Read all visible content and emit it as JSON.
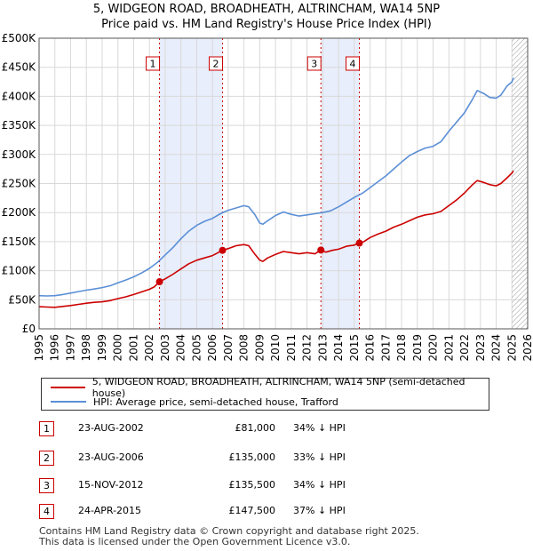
{
  "title_line1": "5, WIDGEON ROAD, BROADHEATH, ALTRINCHAM, WA14 5NP",
  "title_line2": "Price paid vs. HM Land Registry's House Price Index (HPI)",
  "chart_data": {
    "type": "line",
    "x_range": [
      1995,
      2026
    ],
    "ylim": [
      0,
      500000
    ],
    "y_ticks": [
      {
        "value": 0,
        "label": "£0"
      },
      {
        "value": 50000,
        "label": "£50K"
      },
      {
        "value": 100000,
        "label": "£100K"
      },
      {
        "value": 150000,
        "label": "£150K"
      },
      {
        "value": 200000,
        "label": "£200K"
      },
      {
        "value": 250000,
        "label": "£250K"
      },
      {
        "value": 300000,
        "label": "£300K"
      },
      {
        "value": 350000,
        "label": "£350K"
      },
      {
        "value": 400000,
        "label": "£400K"
      },
      {
        "value": 450000,
        "label": "£450K"
      },
      {
        "value": 500000,
        "label": "£500K"
      }
    ],
    "x_ticks": [
      "1995",
      "1996",
      "1997",
      "1998",
      "1999",
      "2000",
      "2001",
      "2002",
      "2003",
      "2004",
      "2005",
      "2006",
      "2007",
      "2008",
      "2009",
      "2010",
      "2011",
      "2012",
      "2013",
      "2014",
      "2015",
      "2016",
      "2017",
      "2018",
      "2019",
      "2020",
      "2021",
      "2022",
      "2023",
      "2024",
      "2025",
      "2026"
    ],
    "grid": true,
    "forecast_from": 2025.0,
    "series": [
      {
        "name": "5, WIDGEON ROAD, BROADHEATH, ALTRINCHAM, WA14 5NP (semi-detached house)",
        "color": "#cc0000",
        "points": [
          [
            1995.0,
            38000
          ],
          [
            1995.5,
            37500
          ],
          [
            1996.0,
            37000
          ],
          [
            1996.5,
            38500
          ],
          [
            1997.0,
            40000
          ],
          [
            1997.5,
            42000
          ],
          [
            1998.0,
            44000
          ],
          [
            1998.5,
            45500
          ],
          [
            1999.0,
            46500
          ],
          [
            1999.5,
            48500
          ],
          [
            2000.0,
            52000
          ],
          [
            2000.5,
            55000
          ],
          [
            2001.0,
            59000
          ],
          [
            2001.5,
            63500
          ],
          [
            2002.0,
            68000
          ],
          [
            2002.3,
            72000
          ],
          [
            2002.64,
            81000
          ],
          [
            2003.0,
            86000
          ],
          [
            2003.5,
            94000
          ],
          [
            2004.0,
            103000
          ],
          [
            2004.5,
            112000
          ],
          [
            2005.0,
            118000
          ],
          [
            2005.5,
            122000
          ],
          [
            2006.0,
            126000
          ],
          [
            2006.64,
            135000
          ],
          [
            2007.0,
            138000
          ],
          [
            2007.5,
            143000
          ],
          [
            2008.0,
            145000
          ],
          [
            2008.3,
            143000
          ],
          [
            2008.7,
            128000
          ],
          [
            2009.0,
            118000
          ],
          [
            2009.2,
            116000
          ],
          [
            2009.5,
            122000
          ],
          [
            2010.0,
            128000
          ],
          [
            2010.5,
            133000
          ],
          [
            2011.0,
            131000
          ],
          [
            2011.5,
            129000
          ],
          [
            2012.0,
            131000
          ],
          [
            2012.5,
            129000
          ],
          [
            2012.88,
            135500
          ],
          [
            2013.2,
            132000
          ],
          [
            2013.6,
            135000
          ],
          [
            2014.0,
            137000
          ],
          [
            2014.5,
            142000
          ],
          [
            2015.0,
            144000
          ],
          [
            2015.32,
            147500
          ],
          [
            2015.6,
            150000
          ],
          [
            2016.0,
            157000
          ],
          [
            2016.5,
            163000
          ],
          [
            2017.0,
            168000
          ],
          [
            2017.5,
            175000
          ],
          [
            2018.0,
            180000
          ],
          [
            2018.5,
            186000
          ],
          [
            2019.0,
            192000
          ],
          [
            2019.5,
            196000
          ],
          [
            2020.0,
            198000
          ],
          [
            2020.5,
            202000
          ],
          [
            2021.0,
            212000
          ],
          [
            2021.5,
            222000
          ],
          [
            2022.0,
            234000
          ],
          [
            2022.5,
            248000
          ],
          [
            2022.8,
            255000
          ],
          [
            2023.2,
            252000
          ],
          [
            2023.6,
            248000
          ],
          [
            2024.0,
            246000
          ],
          [
            2024.3,
            250000
          ],
          [
            2024.7,
            260000
          ],
          [
            2025.0,
            268000
          ],
          [
            2025.1,
            272000
          ]
        ]
      },
      {
        "name": "HPI: Average price, semi-detached house, Trafford",
        "color": "#5b8fd6",
        "points": [
          [
            1995.0,
            57000
          ],
          [
            1995.5,
            56500
          ],
          [
            1996.0,
            57000
          ],
          [
            1996.5,
            59000
          ],
          [
            1997.0,
            61500
          ],
          [
            1997.5,
            64000
          ],
          [
            1998.0,
            66500
          ],
          [
            1998.5,
            68500
          ],
          [
            1999.0,
            71000
          ],
          [
            1999.5,
            74000
          ],
          [
            2000.0,
            79000
          ],
          [
            2000.5,
            84000
          ],
          [
            2001.0,
            89500
          ],
          [
            2001.5,
            96000
          ],
          [
            2002.0,
            104000
          ],
          [
            2002.5,
            114000
          ],
          [
            2003.0,
            127000
          ],
          [
            2003.5,
            140000
          ],
          [
            2004.0,
            155000
          ],
          [
            2004.5,
            168000
          ],
          [
            2005.0,
            178000
          ],
          [
            2005.5,
            185000
          ],
          [
            2006.0,
            190000
          ],
          [
            2006.5,
            198000
          ],
          [
            2007.0,
            204000
          ],
          [
            2007.5,
            208000
          ],
          [
            2008.0,
            212000
          ],
          [
            2008.3,
            210000
          ],
          [
            2008.7,
            196000
          ],
          [
            2009.0,
            182000
          ],
          [
            2009.2,
            180000
          ],
          [
            2009.5,
            186000
          ],
          [
            2010.0,
            195000
          ],
          [
            2010.5,
            201000
          ],
          [
            2011.0,
            197000
          ],
          [
            2011.5,
            194000
          ],
          [
            2012.0,
            196000
          ],
          [
            2012.5,
            198000
          ],
          [
            2013.0,
            200000
          ],
          [
            2013.5,
            203000
          ],
          [
            2014.0,
            210000
          ],
          [
            2014.5,
            218000
          ],
          [
            2015.0,
            226000
          ],
          [
            2015.5,
            233000
          ],
          [
            2016.0,
            243000
          ],
          [
            2016.5,
            253000
          ],
          [
            2017.0,
            263000
          ],
          [
            2017.5,
            275000
          ],
          [
            2018.0,
            287000
          ],
          [
            2018.5,
            298000
          ],
          [
            2019.0,
            305000
          ],
          [
            2019.5,
            311000
          ],
          [
            2020.0,
            314000
          ],
          [
            2020.5,
            322000
          ],
          [
            2021.0,
            340000
          ],
          [
            2021.5,
            356000
          ],
          [
            2022.0,
            372000
          ],
          [
            2022.5,
            395000
          ],
          [
            2022.8,
            410000
          ],
          [
            2023.2,
            405000
          ],
          [
            2023.6,
            398000
          ],
          [
            2024.0,
            397000
          ],
          [
            2024.3,
            402000
          ],
          [
            2024.7,
            418000
          ],
          [
            2025.0,
            425000
          ],
          [
            2025.1,
            432000
          ]
        ]
      }
    ],
    "markers": [
      {
        "label": "1",
        "x": 2002.64,
        "y": 81000
      },
      {
        "label": "2",
        "x": 2006.64,
        "y": 135000
      },
      {
        "label": "3",
        "x": 2012.88,
        "y": 135500
      },
      {
        "label": "4",
        "x": 2015.32,
        "y": 147500
      }
    ],
    "shaded_ranges": [
      [
        2002.64,
        2006.64
      ],
      [
        2012.88,
        2015.32
      ]
    ]
  },
  "legend": {
    "property_label": "5, WIDGEON ROAD, BROADHEATH, ALTRINCHAM, WA14 5NP (semi-detached house)",
    "hpi_label": "HPI: Average price, semi-detached house, Trafford"
  },
  "transactions": [
    {
      "num": "1",
      "date": "23-AUG-2002",
      "price": "£81,000",
      "hpi": "34% ↓ HPI"
    },
    {
      "num": "2",
      "date": "23-AUG-2006",
      "price": "£135,000",
      "hpi": "33% ↓ HPI"
    },
    {
      "num": "3",
      "date": "15-NOV-2012",
      "price": "£135,500",
      "hpi": "34% ↓ HPI"
    },
    {
      "num": "4",
      "date": "24-APR-2015",
      "price": "£147,500",
      "hpi": "37% ↓ HPI"
    }
  ],
  "footer": {
    "line1": "Contains HM Land Registry data © Crown copyright and database right 2025.",
    "line2": "This data is licensed under the Open Government Licence v3.0."
  }
}
